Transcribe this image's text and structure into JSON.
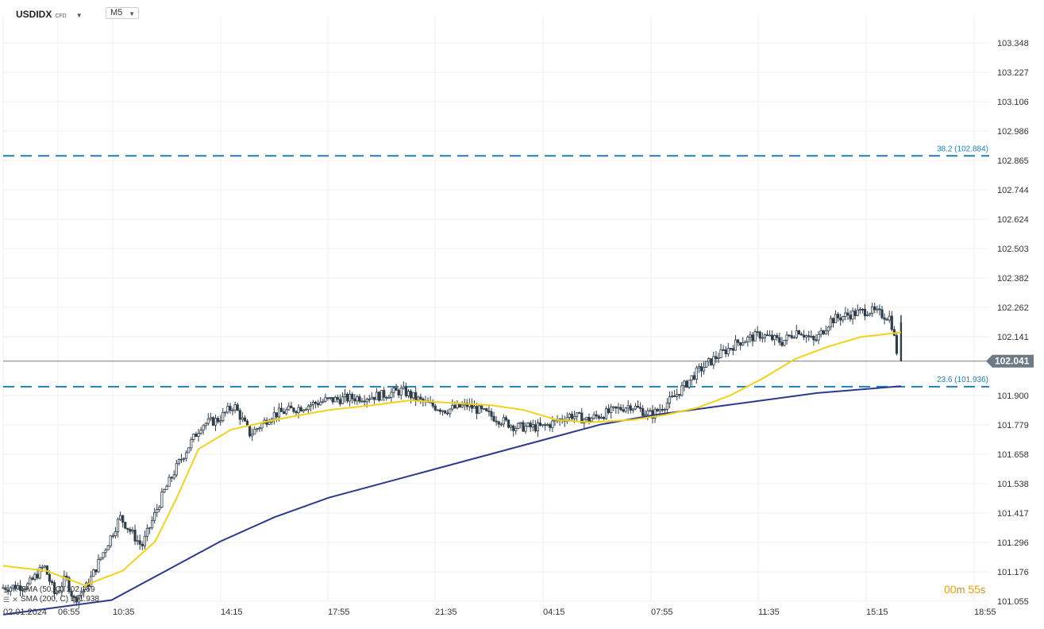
{
  "header": {
    "symbol": "USDIDX",
    "symbol_suffix": "CFD",
    "timeframe": "M5"
  },
  "legend": {
    "sma50": "SMA (50, C) 102.159",
    "sma200": "SMA (200, C) 101.938"
  },
  "countdown": {
    "minutes": "00",
    "minutes_unit": "m",
    "seconds": "55",
    "seconds_unit": "s"
  },
  "colors": {
    "candle": "#2f3e4a",
    "sma50": "#f2d21b",
    "sma200": "#2b3a8f",
    "fib_line": "#1f80b8",
    "price_tag": "#6b7a85"
  },
  "chart_data": {
    "type": "candlestick",
    "y_ticks": [
      "103.348",
      "103.227",
      "103.106",
      "102.986",
      "102.865",
      "102.744",
      "102.624",
      "102.503",
      "102.382",
      "102.262",
      "102.141",
      "101.900",
      "101.779",
      "101.658",
      "101.538",
      "101.417",
      "101.296",
      "101.176",
      "101.055"
    ],
    "ylim": [
      101.055,
      103.348
    ],
    "x_ticks": [
      "02.01.2024",
      "06:55",
      "10:35",
      "14:15",
      "17:55",
      "21:35",
      "04:15",
      "07:55",
      "11:35",
      "15:15",
      "18:55"
    ],
    "current_price": "102.041",
    "fib_levels": [
      {
        "label": "38.2 (102.884)",
        "value": 102.884
      },
      {
        "label": "23.6 (101.936)",
        "value": 101.936
      }
    ],
    "price_path": [
      [
        0,
        101.11
      ],
      [
        0.05,
        101.12
      ],
      [
        0.08,
        101.2
      ],
      [
        0.1,
        101.08
      ],
      [
        0.12,
        101.15
      ],
      [
        0.135,
        101.06
      ],
      [
        0.16,
        101.12
      ],
      [
        0.22,
        101.4
      ],
      [
        0.26,
        101.28
      ],
      [
        0.3,
        101.5
      ],
      [
        0.33,
        101.63
      ],
      [
        0.37,
        101.78
      ],
      [
        0.4,
        101.8
      ],
      [
        0.43,
        101.86
      ],
      [
        0.46,
        101.74
      ],
      [
        0.5,
        101.82
      ],
      [
        0.55,
        101.85
      ],
      [
        0.6,
        101.88
      ],
      [
        0.65,
        101.89
      ],
      [
        0.7,
        101.9
      ],
      [
        0.74,
        101.92
      ],
      [
        0.78,
        101.87
      ],
      [
        0.82,
        101.84
      ],
      [
        0.86,
        101.86
      ],
      [
        0.9,
        101.82
      ],
      [
        0.95,
        101.77
      ],
      [
        1.0,
        101.77
      ],
      [
        1.05,
        101.82
      ],
      [
        1.08,
        101.8
      ],
      [
        1.12,
        101.83
      ],
      [
        1.16,
        101.86
      ],
      [
        1.2,
        101.82
      ],
      [
        1.24,
        101.89
      ],
      [
        1.28,
        101.99
      ],
      [
        1.32,
        102.06
      ],
      [
        1.36,
        102.12
      ],
      [
        1.4,
        102.15
      ],
      [
        1.44,
        102.12
      ],
      [
        1.47,
        102.17
      ],
      [
        1.5,
        102.12
      ],
      [
        1.53,
        102.21
      ],
      [
        1.56,
        102.23
      ],
      [
        1.6,
        102.25
      ],
      [
        1.64,
        102.22
      ],
      [
        1.655,
        102.04
      ]
    ],
    "sma50": [
      [
        0,
        101.2
      ],
      [
        0.08,
        101.18
      ],
      [
        0.15,
        101.12
      ],
      [
        0.22,
        101.18
      ],
      [
        0.28,
        101.3
      ],
      [
        0.32,
        101.48
      ],
      [
        0.36,
        101.68
      ],
      [
        0.42,
        101.76
      ],
      [
        0.5,
        101.8
      ],
      [
        0.6,
        101.84
      ],
      [
        0.68,
        101.86
      ],
      [
        0.75,
        101.88
      ],
      [
        0.82,
        101.87
      ],
      [
        0.9,
        101.86
      ],
      [
        0.96,
        101.84
      ],
      [
        1.02,
        101.8
      ],
      [
        1.08,
        101.79
      ],
      [
        1.16,
        101.8
      ],
      [
        1.22,
        101.82
      ],
      [
        1.28,
        101.85
      ],
      [
        1.34,
        101.9
      ],
      [
        1.4,
        101.97
      ],
      [
        1.46,
        102.05
      ],
      [
        1.52,
        102.1
      ],
      [
        1.58,
        102.14
      ],
      [
        1.655,
        102.159
      ]
    ],
    "sma200": [
      [
        0,
        101.0
      ],
      [
        0.2,
        101.06
      ],
      [
        0.3,
        101.18
      ],
      [
        0.4,
        101.3
      ],
      [
        0.5,
        101.4
      ],
      [
        0.6,
        101.48
      ],
      [
        0.7,
        101.54
      ],
      [
        0.8,
        101.6
      ],
      [
        0.9,
        101.66
      ],
      [
        1.0,
        101.72
      ],
      [
        1.1,
        101.78
      ],
      [
        1.2,
        101.82
      ],
      [
        1.3,
        101.85
      ],
      [
        1.4,
        101.88
      ],
      [
        1.5,
        101.91
      ],
      [
        1.655,
        101.938
      ]
    ]
  }
}
